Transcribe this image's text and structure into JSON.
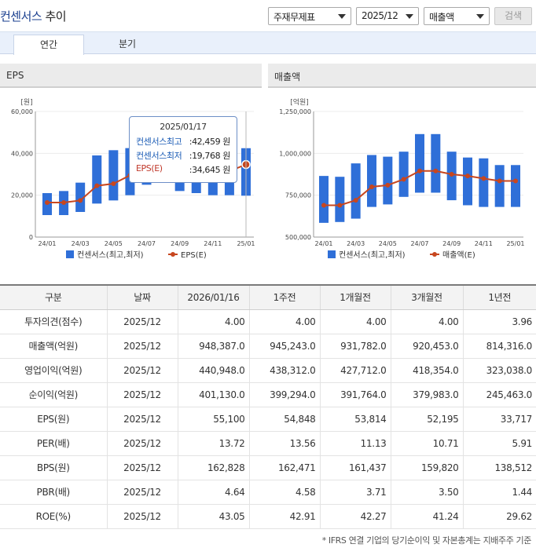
{
  "header": {
    "title": "컨센서스",
    "title_suffix": "추이",
    "select_type": "주재무제표",
    "select_period": "2025/12",
    "select_item": "매출액",
    "search_label": "검색"
  },
  "tabs": [
    {
      "label": "연간",
      "active": true
    },
    {
      "label": "분기",
      "active": false
    }
  ],
  "charts": {
    "eps_panel_title": "EPS",
    "sales_panel_title": "매출액"
  },
  "tooltip": {
    "date": "2025/01/17",
    "high_label": "컨센서스최고",
    "high_value": ":42,459 원",
    "low_label": "컨센서스최저",
    "low_value": ":19,768 원",
    "eps_label": "EPS(E)",
    "eps_value": ":34,645 원"
  },
  "chart_data": [
    {
      "type": "bar",
      "title": "EPS",
      "unit": "[원]",
      "x": [
        "24/01",
        "24/02",
        "24/03",
        "24/04",
        "24/05",
        "24/06",
        "24/07",
        "24/08",
        "24/09",
        "24/10",
        "24/11",
        "24/12",
        "25/01"
      ],
      "xticks": [
        "24/01",
        "24/03",
        "24/05",
        "24/07",
        "24/09",
        "24/11",
        "25/01"
      ],
      "ylim": [
        0,
        60000
      ],
      "yticks": [
        "0",
        "20,000",
        "40,000",
        "60,000"
      ],
      "series": [
        {
          "name": "컨센서스(최고,최저)",
          "kind": "range",
          "color": "#2f6fd8",
          "high": [
            21000,
            22000,
            26000,
            39000,
            41500,
            42500,
            42000,
            41000,
            40000,
            40000,
            41000,
            41500,
            42459
          ],
          "low": [
            10500,
            10500,
            12000,
            16000,
            17500,
            20000,
            25000,
            26000,
            22000,
            21000,
            20000,
            20000,
            19768
          ]
        },
        {
          "name": "EPS(E)",
          "kind": "line",
          "color": "#c7461f",
          "values": [
            16500,
            16500,
            17500,
            24500,
            25500,
            29500,
            30500,
            31000,
            30500,
            30500,
            31000,
            31500,
            34645
          ]
        }
      ],
      "legend_position": "bottom"
    },
    {
      "type": "bar",
      "title": "매출액",
      "unit": "[억원]",
      "x": [
        "24/01",
        "24/02",
        "24/03",
        "24/04",
        "24/05",
        "24/06",
        "24/07",
        "24/08",
        "24/09",
        "24/10",
        "24/11",
        "24/12",
        "25/01"
      ],
      "xticks": [
        "24/01",
        "24/03",
        "24/05",
        "24/07",
        "24/09",
        "24/11",
        "25/01"
      ],
      "ylim": [
        500000,
        1250000
      ],
      "yticks": [
        "500,000",
        "750,000",
        "1,000,000",
        "1,250,000"
      ],
      "series": [
        {
          "name": "컨센서스(최고,최저)",
          "kind": "range",
          "color": "#2f6fd8",
          "high": [
            865000,
            860000,
            940000,
            990000,
            980000,
            1010000,
            1115000,
            1115000,
            1010000,
            975000,
            970000,
            930000,
            930000
          ],
          "low": [
            585000,
            590000,
            610000,
            680000,
            695000,
            740000,
            765000,
            765000,
            720000,
            690000,
            680000,
            680000,
            680000
          ]
        },
        {
          "name": "매출액(E)",
          "kind": "line",
          "color": "#c7461f",
          "values": [
            690000,
            690000,
            720000,
            800000,
            810000,
            845000,
            895000,
            895000,
            875000,
            865000,
            850000,
            835000,
            835000
          ]
        }
      ],
      "legend_position": "bottom"
    }
  ],
  "table": {
    "headers": [
      "구분",
      "날짜",
      "2026/01/16",
      "1주전",
      "1개월전",
      "3개월전",
      "1년전"
    ],
    "rows": [
      {
        "label": "투자의견(점수)",
        "date": "2025/12",
        "v": [
          "4.00",
          "4.00",
          "4.00",
          "4.00",
          "3.96"
        ]
      },
      {
        "label": "매출액(억원)",
        "date": "2025/12",
        "v": [
          "948,387.0",
          "945,243.0",
          "931,782.0",
          "920,453.0",
          "814,316.0"
        ]
      },
      {
        "label": "영업이익(억원)",
        "date": "2025/12",
        "v": [
          "440,948.0",
          "438,312.0",
          "427,712.0",
          "418,354.0",
          "323,038.0"
        ]
      },
      {
        "label": "순이익(억원)",
        "date": "2025/12",
        "v": [
          "401,130.0",
          "399,294.0",
          "391,764.0",
          "379,983.0",
          "245,463.0"
        ]
      },
      {
        "label": "EPS(원)",
        "date": "2025/12",
        "v": [
          "55,100",
          "54,848",
          "53,814",
          "52,195",
          "33,717"
        ]
      },
      {
        "label": "PER(배)",
        "date": "2025/12",
        "v": [
          "13.72",
          "13.56",
          "11.13",
          "10.71",
          "5.91"
        ]
      },
      {
        "label": "BPS(원)",
        "date": "2025/12",
        "v": [
          "162,828",
          "162,471",
          "161,437",
          "159,820",
          "138,512"
        ]
      },
      {
        "label": "PBR(배)",
        "date": "2025/12",
        "v": [
          "4.64",
          "4.58",
          "3.71",
          "3.50",
          "1.44"
        ]
      },
      {
        "label": "ROE(%)",
        "date": "2025/12",
        "v": [
          "43.05",
          "42.91",
          "42.27",
          "41.24",
          "29.62"
        ]
      }
    ]
  },
  "footnote": "* IFRS 연결 기업의 당기순이익 및 자본총계는 지배주주 기준"
}
